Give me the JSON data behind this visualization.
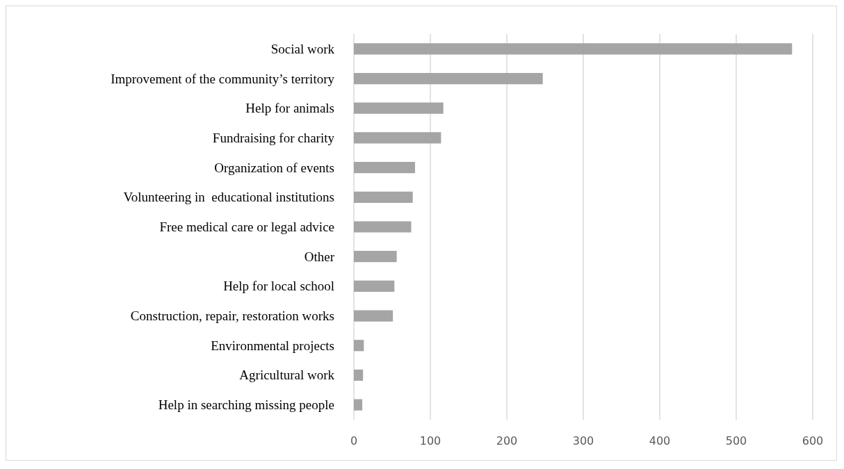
{
  "chart_data": {
    "type": "bar",
    "orientation": "horizontal",
    "categories": [
      "Social work",
      "Improvement of the community’s territory",
      "Help for animals",
      "Fundraising for charity",
      "Organization of events",
      "Volunteering in  educational institutions",
      "Free medical care or legal advice",
      "Other",
      "Help for local school",
      "Construction, repair, restoration works",
      "Environmental projects",
      "Agricultural work",
      "Help in searching missing people"
    ],
    "values": [
      573,
      247,
      117,
      114,
      80,
      77,
      75,
      56,
      53,
      51,
      13,
      12,
      11
    ],
    "color": "#a5a5a5",
    "xlim": [
      0,
      600
    ],
    "xticks": [
      0,
      100,
      200,
      300,
      400,
      500,
      600
    ],
    "grid": "x"
  }
}
